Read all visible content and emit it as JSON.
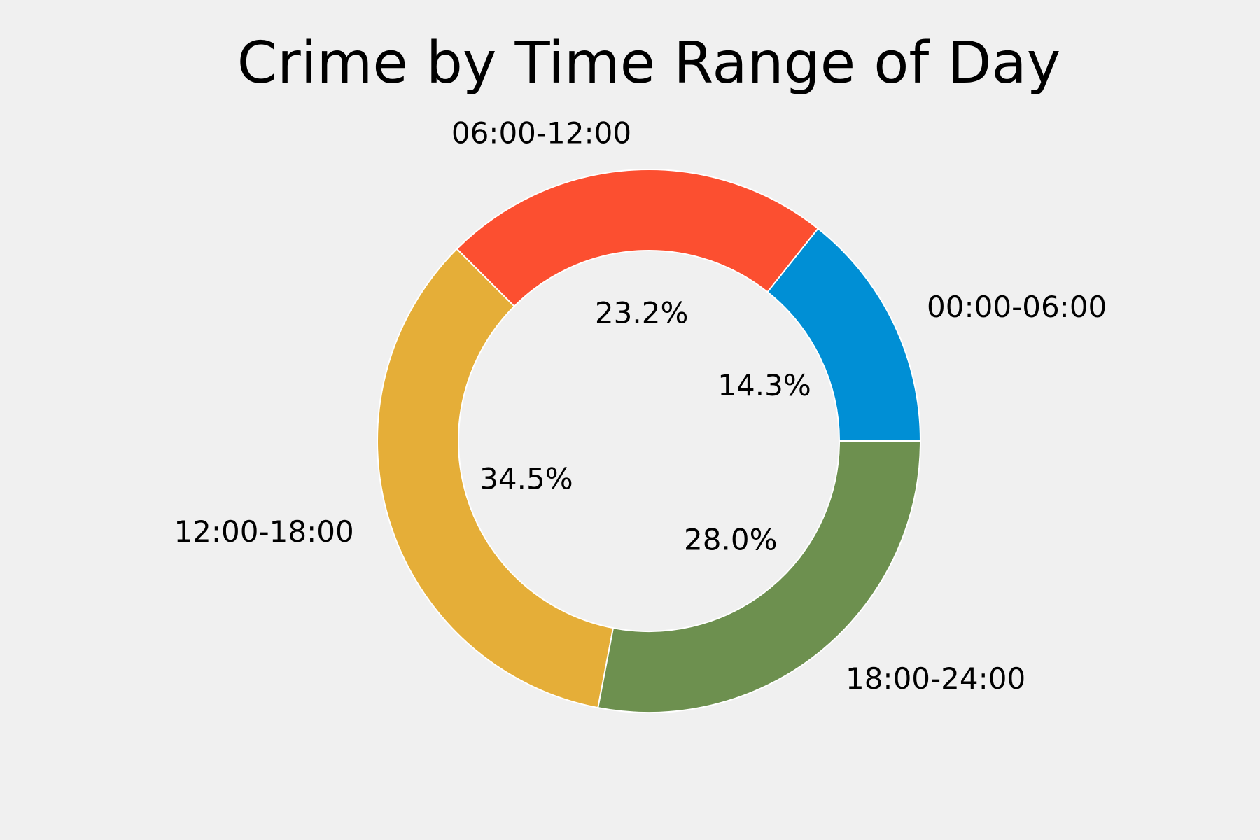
{
  "chart_data": {
    "type": "pie",
    "subtype": "donut",
    "title": "Crime by Time Range of Day",
    "categories": [
      "00:00-06:00",
      "06:00-12:00",
      "12:00-18:00",
      "18:00-24:00"
    ],
    "values": [
      14.3,
      23.2,
      34.5,
      28.0
    ],
    "value_labels": [
      "14.3%",
      "23.2%",
      "34.5%",
      "28.0%"
    ],
    "colors": [
      "#008fd5",
      "#fc4f30",
      "#e5ae38",
      "#6d904f"
    ],
    "background": "#f0f0f0",
    "wedge_edge_color": "#ffffff",
    "start_angle_deg": 0,
    "direction": "counterclockwise",
    "legend": "none",
    "grid": false
  }
}
